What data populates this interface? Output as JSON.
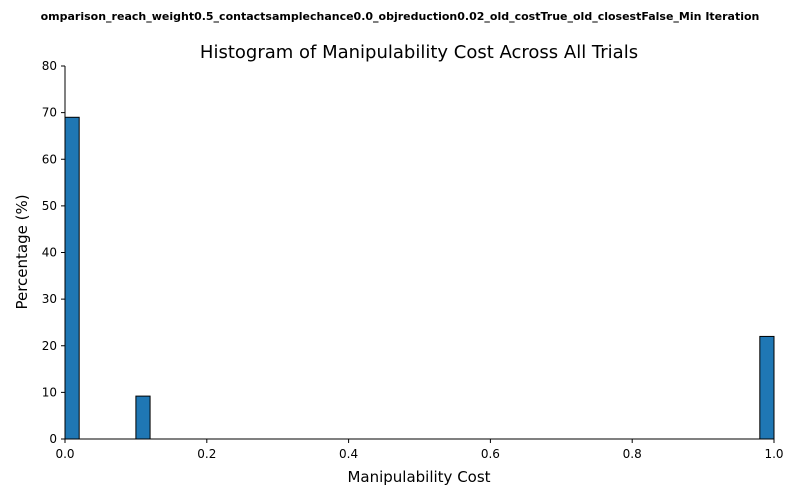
{
  "chart_data": {
    "type": "bar",
    "suptitle": "omparison_reach_weight0.5_contactsamplechance0.0_objreduction0.02_old_costTrue_old_closestFalse_Min Iteration",
    "title": "Histogram of Manipulability Cost Across All Trials",
    "xlabel": "Manipulability Cost",
    "ylabel": "Percentage (%)",
    "xlim": [
      0,
      1
    ],
    "ylim": [
      0,
      80
    ],
    "xticks": [
      "0.0",
      "0.2",
      "0.4",
      "0.6",
      "0.8",
      "1.0"
    ],
    "yticks": [
      "0",
      "10",
      "20",
      "30",
      "40",
      "50",
      "60",
      "70",
      "80"
    ],
    "bar_color": "#1f77b4",
    "edge_color": "#000000",
    "grid": false,
    "bins": [
      {
        "x0": 0.0,
        "x1": 0.02,
        "value": 69
      },
      {
        "x0": 0.1,
        "x1": 0.12,
        "value": 9.2
      },
      {
        "x0": 0.98,
        "x1": 1.0,
        "value": 22
      }
    ]
  }
}
